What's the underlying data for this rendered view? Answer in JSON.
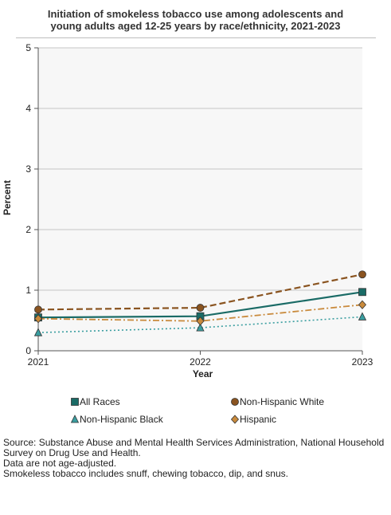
{
  "title_line1": "Initiation of smokeless tobacco use among adolescents and",
  "title_line2": "young adults aged 12-25 years by race/ethnicity, 2021-2023",
  "chart_data": {
    "type": "line",
    "title": "Initiation of smokeless tobacco use among adolescents and young adults aged 12-25 years by race/ethnicity, 2021-2023",
    "xlabel": "Year",
    "ylabel": "Percent",
    "x": [
      "2021",
      "2022",
      "2023"
    ],
    "y_ticks": [
      "0",
      "1",
      "2",
      "3",
      "4",
      "5"
    ],
    "ylim": [
      0,
      5
    ],
    "grid": true,
    "legend_position": "bottom",
    "series": [
      {
        "name": "All Races",
        "values": [
          0.55,
          0.57,
          0.97
        ],
        "color": "#1a6b66",
        "marker": "square",
        "line": "solid"
      },
      {
        "name": "Non-Hispanic White",
        "values": [
          0.68,
          0.71,
          1.26
        ],
        "color": "#8a5420",
        "marker": "circle",
        "line": "dashed"
      },
      {
        "name": "Non-Hispanic Black",
        "values": [
          0.3,
          0.38,
          0.56
        ],
        "color": "#3a9ea0",
        "marker": "triangle",
        "line": "dotted"
      },
      {
        "name": "Hispanic",
        "values": [
          0.53,
          0.49,
          0.76
        ],
        "color": "#c98a3c",
        "marker": "diamond",
        "line": "dashdot"
      }
    ]
  },
  "notes": [
    "Source: Substance Abuse and Mental Health Services Administration, National Household Survey on Drug Use and Health.",
    "Data are not age-adjusted.",
    "Smokeless tobacco includes snuff, chewing tobacco, dip, and snus."
  ]
}
